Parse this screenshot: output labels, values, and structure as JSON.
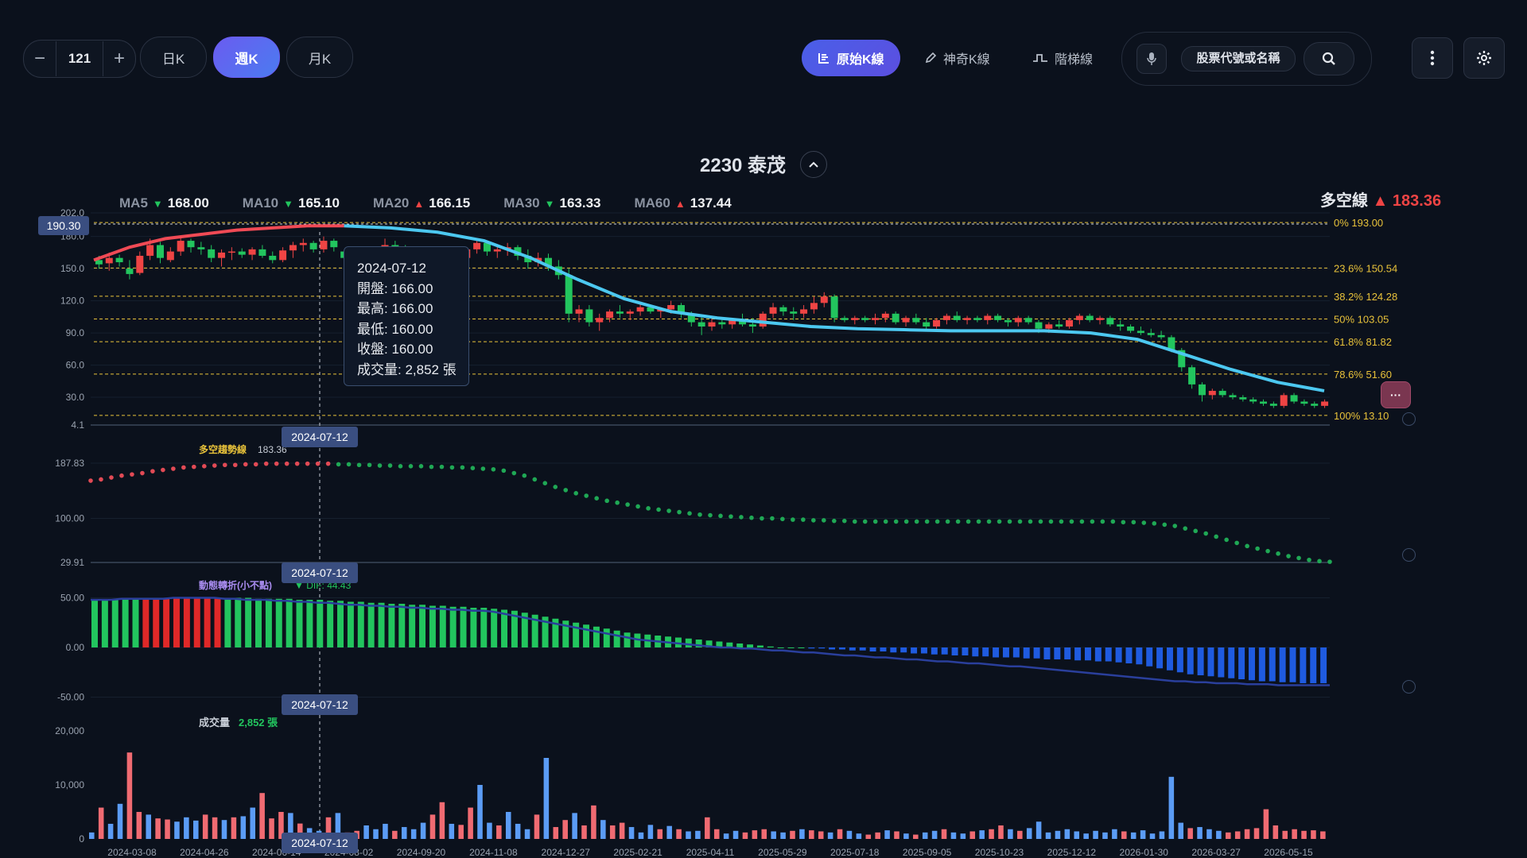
{
  "toolbar": {
    "count": "121",
    "minus": "−",
    "plus": "+",
    "periods": [
      "日K",
      "週K",
      "月K"
    ],
    "active_period": "週K",
    "modes": [
      "原始K線",
      "神奇K線",
      "階梯線"
    ],
    "active_mode": "原始K線",
    "search_placeholder": "股票代號或名稱"
  },
  "stock": {
    "title": "2230 泰茂"
  },
  "ma_legend": [
    {
      "label": "MA5",
      "dir": "down",
      "value": "168.00"
    },
    {
      "label": "MA10",
      "dir": "down",
      "value": "165.10"
    },
    {
      "label": "MA20",
      "dir": "up",
      "value": "166.15"
    },
    {
      "label": "MA30",
      "dir": "down",
      "value": "163.33"
    },
    {
      "label": "MA60",
      "dir": "up",
      "value": "137.44"
    }
  ],
  "trend_line": {
    "label": "多空線",
    "dir": "up",
    "value": "183.36"
  },
  "crosshair": {
    "date": "2024-07-12",
    "price": "190.30"
  },
  "tooltip": {
    "date": "2024-07-12",
    "open": "開盤: 166.00",
    "high": "最高: 166.00",
    "low": "最低: 160.00",
    "close": "收盤: 160.00",
    "volume": "成交量: 2,852 張"
  },
  "fib_levels": [
    {
      "label": "0%",
      "value": "193.00",
      "price": 193.0
    },
    {
      "label": "23.6%",
      "value": "150.54",
      "price": 150.54
    },
    {
      "label": "38.2%",
      "value": "124.28",
      "price": 124.28
    },
    {
      "label": "50%",
      "value": "103.05",
      "price": 103.05
    },
    {
      "label": "61.8%",
      "value": "81.82",
      "price": 81.82
    },
    {
      "label": "78.6%",
      "value": "51.60",
      "price": 51.6
    },
    {
      "label": "100%",
      "value": "13.10",
      "price": 13.1
    }
  ],
  "panel_labels": {
    "trend": {
      "name": "多空趨勢線",
      "value": "183.36"
    },
    "macd": {
      "name": "動態轉折(小不點)",
      "value": "▼ DIF: 44.43"
    },
    "volume": {
      "name": "成交量",
      "value": "2,852 張"
    }
  },
  "colors": {
    "up": "#ef4444",
    "down": "#22c55e",
    "ma_line": "#4cc8f0",
    "fib": "#e8c23a",
    "macd_neg": "#1f5be0"
  },
  "chart_data": [
    {
      "type": "candlestick",
      "title": "2230 泰茂",
      "y_axis_ticks": [
        "202.0",
        "180.0",
        "150.0",
        "120.0",
        "90.0",
        "60.0",
        "30.0",
        "4.1"
      ],
      "ylim": [
        4.1,
        202.0
      ],
      "x_tick_labels": [
        "2024-03-08",
        "2024-04-26",
        "2024-06-14",
        "2024-08-02",
        "2024-09-20",
        "2024-11-08",
        "2024-12-27",
        "2025-02-21",
        "2025-04-11",
        "2025-05-29",
        "2025-07-18",
        "2025-09-05",
        "2025-10-23",
        "2025-12-12",
        "2026-01-30",
        "2026-03-27",
        "2026-05-15"
      ],
      "candles": [
        [
          158,
          162,
          150,
          154
        ],
        [
          155,
          165,
          148,
          160
        ],
        [
          160,
          163,
          152,
          156
        ],
        [
          150,
          158,
          140,
          145
        ],
        [
          146,
          166,
          144,
          162
        ],
        [
          162,
          178,
          158,
          172
        ],
        [
          172,
          175,
          155,
          160
        ],
        [
          158,
          170,
          156,
          166
        ],
        [
          166,
          180,
          162,
          176
        ],
        [
          176,
          178,
          165,
          170
        ],
        [
          170,
          175,
          163,
          168
        ],
        [
          168,
          172,
          156,
          160
        ],
        [
          160,
          168,
          152,
          165
        ],
        [
          165,
          170,
          158,
          166
        ],
        [
          166,
          169,
          160,
          163
        ],
        [
          163,
          170,
          158,
          168
        ],
        [
          168,
          172,
          160,
          162
        ],
        [
          162,
          166,
          155,
          158
        ],
        [
          158,
          170,
          156,
          167
        ],
        [
          167,
          175,
          160,
          172
        ],
        [
          172,
          178,
          166,
          174
        ],
        [
          174,
          176,
          165,
          168
        ],
        [
          168,
          180,
          165,
          176
        ],
        [
          176,
          178,
          166,
          170
        ],
        [
          166,
          166,
          160,
          160
        ],
        [
          160,
          168,
          155,
          164
        ],
        [
          164,
          168,
          158,
          160
        ],
        [
          160,
          170,
          156,
          166
        ],
        [
          166,
          178,
          162,
          172
        ],
        [
          172,
          176,
          166,
          168
        ],
        [
          168,
          172,
          160,
          165
        ],
        [
          165,
          170,
          158,
          162
        ],
        [
          162,
          168,
          155,
          166
        ],
        [
          166,
          170,
          160,
          164
        ],
        [
          164,
          168,
          158,
          162
        ],
        [
          162,
          166,
          155,
          160
        ],
        [
          160,
          170,
          156,
          168
        ],
        [
          168,
          178,
          164,
          174
        ],
        [
          174,
          176,
          162,
          166
        ],
        [
          166,
          172,
          160,
          168
        ],
        [
          168,
          174,
          162,
          170
        ],
        [
          170,
          172,
          158,
          162
        ],
        [
          162,
          168,
          150,
          156
        ],
        [
          156,
          165,
          152,
          160
        ],
        [
          160,
          164,
          148,
          152
        ],
        [
          152,
          158,
          140,
          144
        ],
        [
          144,
          150,
          100,
          108
        ],
        [
          108,
          116,
          100,
          112
        ],
        [
          112,
          116,
          96,
          100
        ],
        [
          100,
          108,
          92,
          104
        ],
        [
          104,
          112,
          100,
          110
        ],
        [
          110,
          116,
          104,
          108
        ],
        [
          108,
          112,
          102,
          110
        ],
        [
          110,
          118,
          106,
          114
        ],
        [
          114,
          116,
          108,
          110
        ],
        [
          110,
          114,
          104,
          112
        ],
        [
          112,
          120,
          108,
          116
        ],
        [
          116,
          118,
          104,
          108
        ],
        [
          108,
          110,
          96,
          100
        ],
        [
          100,
          106,
          88,
          96
        ],
        [
          96,
          104,
          92,
          100
        ],
        [
          100,
          104,
          94,
          98
        ],
        [
          98,
          104,
          94,
          102
        ],
        [
          102,
          108,
          96,
          98
        ],
        [
          98,
          104,
          90,
          96
        ],
        [
          96,
          110,
          94,
          108
        ],
        [
          108,
          118,
          104,
          114
        ],
        [
          114,
          116,
          106,
          110
        ],
        [
          110,
          114,
          102,
          108
        ],
        [
          108,
          116,
          104,
          112
        ],
        [
          112,
          124,
          108,
          118
        ],
        [
          118,
          128,
          114,
          124
        ],
        [
          124,
          126,
          100,
          104
        ],
        [
          104,
          106,
          100,
          102
        ],
        [
          102,
          106,
          98,
          104
        ],
        [
          104,
          106,
          100,
          102
        ],
        [
          102,
          108,
          98,
          104
        ],
        [
          104,
          110,
          100,
          108
        ],
        [
          108,
          110,
          98,
          100
        ],
        [
          100,
          106,
          96,
          104
        ],
        [
          104,
          108,
          98,
          100
        ],
        [
          100,
          104,
          92,
          96
        ],
        [
          96,
          104,
          94,
          102
        ],
        [
          102,
          108,
          98,
          106
        ],
        [
          106,
          110,
          100,
          102
        ],
        [
          102,
          106,
          98,
          104
        ],
        [
          104,
          106,
          100,
          102
        ],
        [
          102,
          108,
          98,
          106
        ],
        [
          106,
          108,
          100,
          102
        ],
        [
          102,
          104,
          96,
          100
        ],
        [
          100,
          106,
          96,
          104
        ],
        [
          104,
          106,
          98,
          100
        ],
        [
          100,
          102,
          90,
          94
        ],
        [
          94,
          100,
          90,
          98
        ],
        [
          98,
          102,
          94,
          96
        ],
        [
          96,
          104,
          94,
          102
        ],
        [
          102,
          108,
          98,
          106
        ],
        [
          106,
          108,
          100,
          102
        ],
        [
          102,
          106,
          98,
          104
        ],
        [
          104,
          106,
          96,
          98
        ],
        [
          98,
          102,
          92,
          96
        ],
        [
          96,
          98,
          90,
          92
        ],
        [
          92,
          96,
          88,
          90
        ],
        [
          90,
          94,
          86,
          88
        ],
        [
          88,
          92,
          84,
          86
        ],
        [
          86,
          88,
          72,
          74
        ],
        [
          74,
          76,
          54,
          58
        ],
        [
          58,
          60,
          38,
          42
        ],
        [
          42,
          44,
          26,
          32
        ],
        [
          32,
          38,
          28,
          36
        ],
        [
          36,
          38,
          30,
          32
        ],
        [
          32,
          34,
          28,
          30
        ],
        [
          30,
          32,
          26,
          28
        ],
        [
          28,
          30,
          24,
          26
        ],
        [
          26,
          28,
          22,
          24
        ],
        [
          24,
          26,
          20,
          22
        ],
        [
          22,
          34,
          20,
          32
        ],
        [
          32,
          34,
          24,
          26
        ],
        [
          26,
          28,
          22,
          24
        ],
        [
          24,
          26,
          20,
          22
        ],
        [
          22,
          28,
          20,
          26
        ]
      ],
      "ma_series_start": [
        158,
        170,
        178,
        182,
        186,
        188,
        190,
        190
      ],
      "ma_series_end": [
        190,
        188,
        184,
        176,
        160,
        140,
        122,
        110,
        104,
        100,
        96,
        94,
        93,
        92,
        92,
        92,
        90,
        84,
        70,
        56,
        44,
        36
      ]
    },
    {
      "type": "scatter",
      "title": "多空趨勢線",
      "y_axis_ticks": [
        "187.83",
        "100.00",
        "29.91"
      ],
      "ylim": [
        29.91,
        187.83
      ],
      "values": [
        160,
        162,
        165,
        168,
        170,
        172,
        175,
        177,
        179,
        181,
        182,
        183,
        184,
        185,
        185,
        186,
        186,
        187,
        187,
        187,
        187,
        187,
        187,
        187,
        186,
        186,
        185,
        185,
        184,
        184,
        183,
        183,
        183,
        182,
        182,
        181,
        181,
        180,
        179,
        178,
        176,
        172,
        168,
        162,
        156,
        150,
        145,
        140,
        136,
        132,
        128,
        125,
        122,
        119,
        116,
        114,
        112,
        110,
        108,
        106,
        105,
        104,
        103,
        102,
        101,
        100,
        100,
        99,
        98,
        98,
        97,
        97,
        96,
        96,
        95,
        95,
        95,
        95,
        95,
        95,
        95,
        95,
        95,
        95,
        95,
        95,
        95,
        95,
        95,
        95,
        95,
        95,
        95,
        95,
        95,
        95,
        95,
        95,
        95,
        95,
        94,
        94,
        93,
        92,
        90,
        88,
        84,
        80,
        76,
        71,
        66,
        61,
        56,
        52,
        48,
        44,
        40,
        37,
        34,
        32,
        31
      ],
      "color_split_index": 24
    },
    {
      "type": "bar",
      "title": "動態轉折(小不點)",
      "y_axis_ticks": [
        "50.00",
        "0.00",
        "-50.00"
      ],
      "ylim": [
        -60,
        60
      ],
      "values": [
        48,
        48,
        48,
        49,
        49,
        49,
        49,
        49,
        50,
        50,
        50,
        50,
        50,
        50,
        50,
        50,
        49,
        49,
        49,
        49,
        48,
        48,
        48,
        47,
        47,
        46,
        46,
        45,
        45,
        44,
        44,
        43,
        43,
        42,
        42,
        41,
        41,
        40,
        40,
        39,
        38,
        37,
        35,
        33,
        31,
        29,
        27,
        25,
        23,
        21,
        19,
        17,
        15,
        14,
        13,
        12,
        11,
        10,
        9,
        8,
        7,
        6,
        5,
        4,
        3,
        2,
        1,
        0,
        0,
        0,
        -1,
        -1,
        -2,
        -2,
        -3,
        -3,
        -4,
        -4,
        -5,
        -5,
        -6,
        -6,
        -7,
        -7,
        -8,
        -8,
        -9,
        -9,
        -10,
        -10,
        -10,
        -11,
        -11,
        -12,
        -12,
        -12,
        -13,
        -13,
        -14,
        -14,
        -15,
        -16,
        -17,
        -19,
        -21,
        -23,
        -25,
        -27,
        -28,
        -29,
        -30,
        -31,
        -32,
        -33,
        -34,
        -34,
        -35,
        -35,
        -36,
        -36,
        -36
      ],
      "red_indices": [
        5,
        6,
        7,
        8,
        9,
        10,
        11,
        12
      ],
      "signal": [
        48,
        48,
        48,
        49,
        49,
        49,
        49,
        49,
        50,
        50,
        50,
        50,
        50,
        49,
        49,
        48,
        48,
        48,
        47,
        47,
        46,
        46,
        45,
        45,
        44,
        43,
        43,
        42,
        42,
        41,
        41,
        40,
        40,
        39,
        39,
        38,
        38,
        37,
        37,
        36,
        34,
        32,
        30,
        28,
        26,
        24,
        22,
        20,
        18,
        16,
        14,
        12,
        10,
        8,
        7,
        6,
        5,
        4,
        3,
        2,
        1,
        0,
        0,
        -1,
        -1,
        -2,
        -3,
        -3,
        -4,
        -5,
        -5,
        -6,
        -7,
        -8,
        -8,
        -9,
        -10,
        -10,
        -11,
        -12,
        -12,
        -13,
        -14,
        -14,
        -15,
        -16,
        -16,
        -17,
        -18,
        -19,
        -19,
        -20,
        -21,
        -22,
        -23,
        -24,
        -25,
        -26,
        -27,
        -28,
        -29,
        -30,
        -31,
        -32,
        -33,
        -34,
        -34,
        -35,
        -35,
        -36,
        -36,
        -36,
        -37,
        -37,
        -37,
        -38,
        -38,
        -38,
        -38,
        -38,
        -38
      ]
    },
    {
      "type": "bar",
      "title": "成交量",
      "y_axis_ticks": [
        "20,000",
        "10,000",
        "0"
      ],
      "ylim": [
        0,
        20000
      ],
      "values": [
        1200,
        5800,
        2800,
        6500,
        16000,
        5000,
        4500,
        3800,
        3600,
        3200,
        4000,
        3400,
        4500,
        4000,
        3500,
        4000,
        4200,
        5800,
        8500,
        3800,
        5000,
        4800,
        2852,
        2000,
        1500,
        4000,
        4800,
        1200,
        1500,
        2500,
        1800,
        2800,
        1500,
        2200,
        1800,
        3000,
        4500,
        6800,
        2800,
        2600,
        5800,
        10000,
        3000,
        2500,
        5000,
        2800,
        1800,
        4500,
        15000,
        2200,
        3500,
        4800,
        2500,
        6200,
        3500,
        2500,
        3000,
        2200,
        1200,
        2600,
        1800,
        2400,
        1800,
        1400,
        1500,
        4000,
        1800,
        1000,
        1500,
        1200,
        1600,
        1800,
        1400,
        1200,
        1500,
        1800,
        1600,
        1400,
        1200,
        1800,
        1500,
        1000,
        800,
        1200,
        1600,
        1400,
        1000,
        800,
        1200,
        1500,
        1800,
        1200,
        1000,
        1400,
        1600,
        1800,
        2500,
        1800,
        1500,
        2000,
        3200,
        1200,
        1500,
        1800,
        1400,
        1000,
        1500,
        1200,
        1800,
        1400,
        1200,
        1600,
        1000,
        1400,
        11500,
        3000,
        2000,
        2200,
        1800,
        1500,
        1200,
        1400,
        1800,
        2000,
        5500,
        2500,
        1500,
        1800,
        1500,
        1600,
        1400
      ]
    }
  ]
}
